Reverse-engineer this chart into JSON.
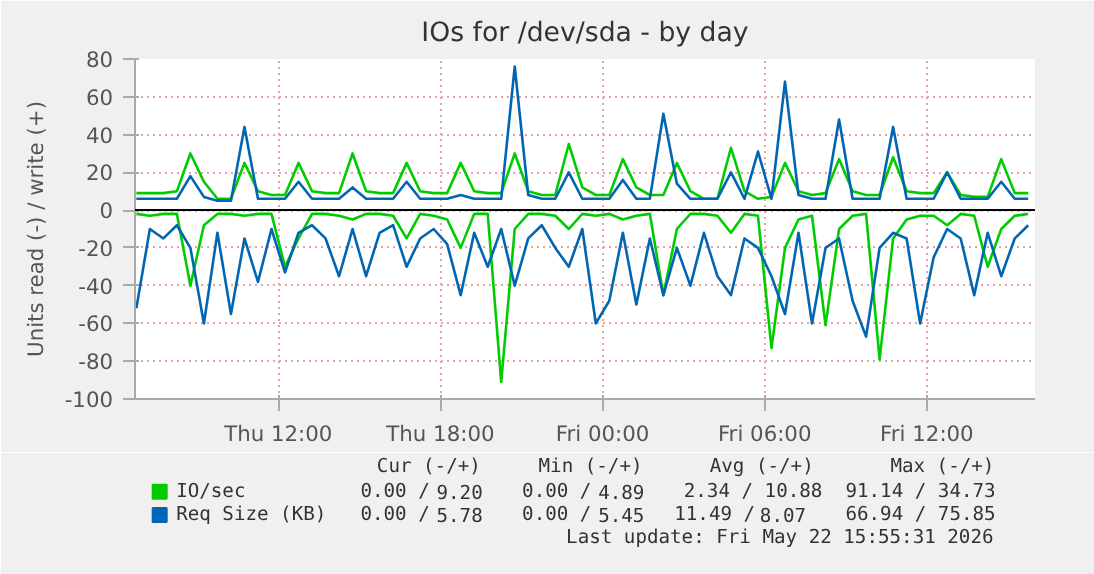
{
  "chart_data": {
    "type": "line",
    "title": "IOs for /dev/sda - by day",
    "ylabel": "Units read (-) / write (+)",
    "x": [
      "2026-05-21T06:45",
      "2026-05-21T07:15",
      "2026-05-21T07:45",
      "2026-05-21T08:15",
      "2026-05-21T08:45",
      "2026-05-21T09:15",
      "2026-05-21T09:45",
      "2026-05-21T10:15",
      "2026-05-21T10:45",
      "2026-05-21T11:15",
      "2026-05-21T11:45",
      "2026-05-21T12:15",
      "2026-05-21T12:45",
      "2026-05-21T13:15",
      "2026-05-21T13:45",
      "2026-05-21T14:15",
      "2026-05-21T14:45",
      "2026-05-21T15:15",
      "2026-05-21T15:45",
      "2026-05-21T16:15",
      "2026-05-21T16:45",
      "2026-05-21T17:15",
      "2026-05-21T17:45",
      "2026-05-21T18:15",
      "2026-05-21T18:45",
      "2026-05-21T19:15",
      "2026-05-21T19:45",
      "2026-05-21T20:15",
      "2026-05-21T20:45",
      "2026-05-21T21:15",
      "2026-05-21T21:45",
      "2026-05-21T22:15",
      "2026-05-21T22:45",
      "2026-05-21T23:15",
      "2026-05-21T23:45",
      "2026-05-22T00:15",
      "2026-05-22T00:45",
      "2026-05-22T01:15",
      "2026-05-22T01:45",
      "2026-05-22T02:15",
      "2026-05-22T02:45",
      "2026-05-22T03:15",
      "2026-05-22T03:45",
      "2026-05-22T04:15",
      "2026-05-22T04:45",
      "2026-05-22T05:15",
      "2026-05-22T05:45",
      "2026-05-22T06:15",
      "2026-05-22T06:45",
      "2026-05-22T07:15",
      "2026-05-22T07:45",
      "2026-05-22T08:15",
      "2026-05-22T08:45",
      "2026-05-22T09:15",
      "2026-05-22T09:45",
      "2026-05-22T10:15",
      "2026-05-22T10:45",
      "2026-05-22T11:15",
      "2026-05-22T11:45",
      "2026-05-22T12:15",
      "2026-05-22T12:45",
      "2026-05-22T13:15",
      "2026-05-22T13:45",
      "2026-05-22T14:15",
      "2026-05-22T14:45",
      "2026-05-22T15:15",
      "2026-05-22T15:45"
    ],
    "xlim": [
      "2026-05-21T06:42",
      "2026-05-22T16:00"
    ],
    "xticks": [
      {
        "value": "2026-05-21T12:00",
        "label": "Thu 12:00"
      },
      {
        "value": "2026-05-21T18:00",
        "label": "Thu 18:00"
      },
      {
        "value": "2026-05-22T00:00",
        "label": "Fri 00:00"
      },
      {
        "value": "2026-05-22T06:00",
        "label": "Fri 06:00"
      },
      {
        "value": "2026-05-22T12:00",
        "label": "Fri 12:00"
      }
    ],
    "ylim": [
      -100,
      80
    ],
    "yticks": [
      -100,
      -80,
      -60,
      -40,
      -20,
      0,
      20,
      40,
      60,
      80
    ],
    "series": [
      {
        "color": "#00cc00",
        "values": [
          -2,
          -3,
          -2,
          -2,
          -40,
          -8,
          -2,
          -2,
          -3,
          -2,
          -2,
          -30,
          -15,
          -2,
          -2,
          -3,
          -5,
          -2,
          -2,
          -3,
          -15,
          -2,
          -3,
          -5,
          -20,
          -2,
          -2,
          -91,
          -10,
          -2,
          -2,
          -3,
          -10,
          -2,
          -3,
          -2,
          -5,
          -3,
          -2,
          -45,
          -10,
          -2,
          -2,
          -3,
          -12,
          -2,
          -3,
          -73,
          -20,
          -5,
          -3,
          -61,
          -10,
          -3,
          -2,
          -79,
          -15,
          -5,
          -3,
          -3,
          -8,
          -2,
          -3,
          -30,
          -10,
          -3,
          -2
        ]
      },
      {
        "name": "IO/sec",
        "color": "#00cc00",
        "values": [
          9,
          9,
          9,
          10,
          30,
          15,
          6,
          6,
          25,
          10,
          8,
          8,
          25,
          10,
          9,
          9,
          30,
          10,
          9,
          9,
          25,
          10,
          9,
          9,
          25,
          10,
          9,
          9,
          30,
          10,
          8,
          8,
          35,
          12,
          8,
          8,
          27,
          12,
          8,
          8,
          25,
          10,
          6,
          6,
          33,
          10,
          6,
          7,
          25,
          10,
          8,
          9,
          27,
          10,
          8,
          8,
          28,
          10,
          9,
          9,
          20,
          8,
          7,
          7,
          27,
          9,
          9
        ]
      },
      {
        "color": "#0066b3",
        "values": [
          -52,
          -10,
          -15,
          -8,
          -20,
          -60,
          -12,
          -55,
          -15,
          -38,
          -10,
          -33,
          -12,
          -8,
          -15,
          -35,
          -10,
          -35,
          -12,
          -8,
          -30,
          -15,
          -10,
          -18,
          -45,
          -12,
          -30,
          -10,
          -40,
          -15,
          -8,
          -20,
          -30,
          -10,
          -60,
          -48,
          -12,
          -50,
          -15,
          -45,
          -20,
          -40,
          -12,
          -35,
          -45,
          -15,
          -20,
          -35,
          -55,
          -12,
          -60,
          -20,
          -15,
          -48,
          -67,
          -20,
          -12,
          -15,
          -60,
          -25,
          -10,
          -15,
          -45,
          -12,
          -35,
          -15,
          -8
        ]
      },
      {
        "name": "Req Size (KB)",
        "color": "#0066b3",
        "values": [
          6,
          6,
          6,
          6,
          18,
          7,
          5,
          5,
          44,
          6,
          6,
          6,
          15,
          6,
          6,
          6,
          12,
          6,
          6,
          6,
          15,
          6,
          6,
          6,
          8,
          6,
          6,
          6,
          76,
          8,
          6,
          6,
          20,
          6,
          6,
          6,
          16,
          6,
          6,
          51,
          14,
          6,
          6,
          6,
          20,
          6,
          31,
          6,
          68,
          8,
          6,
          6,
          48,
          6,
          6,
          6,
          44,
          6,
          6,
          6,
          20,
          6,
          6,
          6,
          15,
          6,
          6
        ]
      }
    ],
    "ref_lines": [
      {
        "axis": "y",
        "value": 0,
        "color": "#000000"
      }
    ],
    "grid": true,
    "legend": "bottom",
    "marker": "none",
    "line_style": "solid",
    "annotations": [
      "Cur (-/+)        Min (-/+)         Avg (-/+)          Max (-/+)",
      "0.00 /  9.20     0.00 /  4.89     2.34 / 10.88     91.14 / 34.73",
      "0.00 /  5.78     0.00 /  5.45    11.49 /  8.07     66.94 / 75.85",
      "Last update: Fri May 22 15:55:31 2026"
    ]
  }
}
